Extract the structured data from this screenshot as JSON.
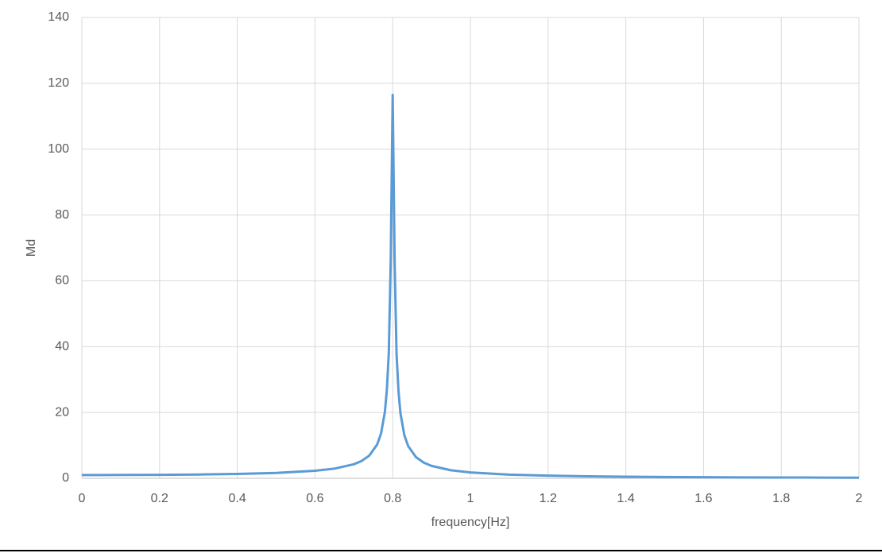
{
  "chart_data": {
    "type": "line",
    "x_label": "frequency[Hz]",
    "y_label": "Md",
    "x": [
      0,
      0.1,
      0.2,
      0.3,
      0.4,
      0.5,
      0.6,
      0.65,
      0.7,
      0.72,
      0.74,
      0.76,
      0.77,
      0.78,
      0.785,
      0.79,
      0.795,
      0.8,
      0.805,
      0.81,
      0.815,
      0.82,
      0.83,
      0.84,
      0.86,
      0.88,
      0.9,
      0.95,
      1.0,
      1.1,
      1.2,
      1.3,
      1.4,
      1.5,
      1.6,
      1.7,
      1.8,
      1.9,
      2.0
    ],
    "series": [
      {
        "name": "Md",
        "color": "#5b9bd5",
        "values": [
          1,
          1.02,
          1.07,
          1.16,
          1.33,
          1.64,
          2.29,
          2.94,
          4.27,
          5.26,
          6.93,
          10.26,
          13.59,
          20.25,
          26.9,
          38.1,
          66.3,
          116.5,
          65.6,
          37.6,
          26.4,
          19.75,
          13.09,
          9.76,
          6.43,
          4.76,
          3.77,
          2.44,
          1.78,
          1.12,
          0.8,
          0.61,
          0.49,
          0.4,
          0.33,
          0.28,
          0.25,
          0.22,
          0.19
        ]
      }
    ],
    "xlim": [
      0,
      2
    ],
    "ylim": [
      0,
      140
    ],
    "xticks": [
      0,
      0.2,
      0.4,
      0.6,
      0.8,
      1,
      1.2,
      1.4,
      1.6,
      1.8,
      2
    ],
    "yticks": [
      0,
      20,
      40,
      60,
      80,
      100,
      120,
      140
    ],
    "grid": true
  }
}
